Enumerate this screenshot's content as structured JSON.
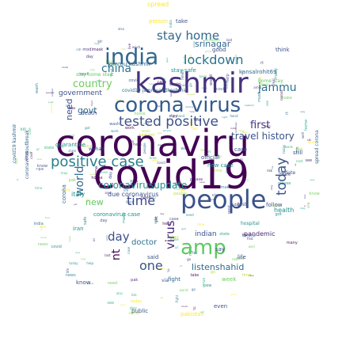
{
  "words": [
    {
      "text": "coronaviru",
      "color": "#440154"
    },
    {
      "text": "covid19",
      "color": "#440154"
    },
    {
      "text": "kashmir",
      "color": "#46327e"
    },
    {
      "text": "corona virus",
      "color": "#365c8d"
    },
    {
      "text": "people",
      "color": "#3b528b"
    },
    {
      "text": "india",
      "color": "#31688e"
    },
    {
      "text": "amp",
      "color": "#5ec962"
    },
    {
      "text": "positive case",
      "color": "#277f8e"
    },
    {
      "text": "tested positive",
      "color": "#3b528b"
    },
    {
      "text": "lockdown",
      "color": "#2c728e"
    },
    {
      "text": "stay home",
      "color": "#31688e"
    },
    {
      "text": "today",
      "color": "#3b528b"
    },
    {
      "text": "china",
      "color": "#2c728e"
    },
    {
      "text": "time",
      "color": "#3e4989"
    },
    {
      "text": "coronavirusupdate",
      "color": "#21918c"
    },
    {
      "text": "travel history",
      "color": "#3b528b"
    },
    {
      "text": "country",
      "color": "#6ccd5a"
    },
    {
      "text": "world",
      "color": "#31688e"
    },
    {
      "text": "virus",
      "color": "#482878"
    },
    {
      "text": "one",
      "color": "#3b528b"
    },
    {
      "text": "day",
      "color": "#3b528b"
    },
    {
      "text": "first",
      "color": "#46327e"
    },
    {
      "text": "jammu",
      "color": "#2c728e"
    },
    {
      "text": "srinagar",
      "color": "#31688e"
    },
    {
      "text": "new",
      "color": "#5ec962"
    },
    {
      "text": "govt",
      "color": "#31688e"
    },
    {
      "text": "need",
      "color": "#3b528b"
    },
    {
      "text": "nt",
      "color": "#440154"
    },
    {
      "text": "listenshahid",
      "color": "#31688e"
    },
    {
      "text": "doctor",
      "color": "#2c728e"
    },
    {
      "text": "indian",
      "color": "#3b528b"
    },
    {
      "text": "government",
      "color": "#3b528b"
    },
    {
      "text": "pandemic",
      "color": "#482878"
    },
    {
      "text": "health",
      "color": "#21918c"
    },
    {
      "text": "italy",
      "color": "#21918c"
    },
    {
      "text": "due coronavirus",
      "color": "#3b528b"
    },
    {
      "text": "coronavirus case",
      "color": "#21918c"
    },
    {
      "text": "new case",
      "color": "#21918c"
    },
    {
      "text": "stay safe",
      "color": "#21918c"
    },
    {
      "text": "jammu kashmir",
      "color": "#31688e"
    },
    {
      "text": "kansalrohit69",
      "color": "#31688e"
    },
    {
      "text": "home stay",
      "color": "#5ec962"
    },
    {
      "text": "spread",
      "color": "#fde725"
    },
    {
      "text": "spread corona",
      "color": "#31688e"
    },
    {
      "text": "covid19 kashmir",
      "color": "#31688e"
    },
    {
      "text": "coronavirusoutbreak",
      "color": "#31688e"
    },
    {
      "text": "pakistan",
      "color": "#fde725"
    },
    {
      "text": "covid19 jammuandkashmir",
      "color": "#2c728e"
    },
    {
      "text": "stay home stay",
      "color": "#5ec962"
    },
    {
      "text": "person",
      "color": "#fde725"
    },
    {
      "text": "take",
      "color": "#3b528b"
    },
    {
      "text": "death",
      "color": "#3b528b"
    },
    {
      "text": "quarantine",
      "color": "#21918c"
    },
    {
      "text": "case",
      "color": "#3b528b"
    },
    {
      "text": "even",
      "color": "#3b528b"
    },
    {
      "text": "public",
      "color": "#3b528b"
    },
    {
      "text": "fight",
      "color": "#31688e"
    },
    {
      "text": "know",
      "color": "#3b528b"
    },
    {
      "text": "life",
      "color": "#3b528b"
    },
    {
      "text": "say",
      "color": "#3b528b"
    },
    {
      "text": "said",
      "color": "#3b528b"
    },
    {
      "text": "think",
      "color": "#3b528b"
    },
    {
      "text": "official",
      "color": "#3b528b"
    },
    {
      "text": "still",
      "color": "#3b528b"
    },
    {
      "text": "iran",
      "color": "#21918c"
    },
    {
      "text": "follow",
      "color": "#3b528b"
    },
    {
      "text": "good",
      "color": "#3b528b"
    },
    {
      "text": "corona",
      "color": "#31688e"
    },
    {
      "text": "update",
      "color": "#3b528b"
    },
    {
      "text": "test",
      "color": "#3b528b"
    },
    {
      "text": "week",
      "color": "#6ccd5a"
    },
    {
      "text": "via",
      "color": "#3b528b"
    },
    {
      "text": "hospital",
      "color": "#21918c"
    },
    {
      "text": "wuhan",
      "color": "#3b528b"
    }
  ],
  "filler_words": [
    "virus",
    "home",
    "case",
    "stay",
    "corona",
    "news",
    "help",
    "test",
    "india",
    "kashmir",
    "covid",
    "safe",
    "help",
    "day",
    "care",
    "god",
    "rt",
    "time",
    "world",
    "please",
    "lockdown",
    "ji",
    "fight",
    "need",
    "people",
    "state",
    "modi",
    "go",
    "work",
    "kill",
    "go",
    "real",
    "hand",
    "wash",
    "mask",
    "us",
    "let",
    "ur",
    "yet",
    "may",
    "got",
    "see",
    "right",
    "way",
    "amid",
    "next",
    "also",
    "many",
    "today",
    "sir",
    "spread",
    "life",
    "take",
    "last",
    "must",
    "back",
    "keep",
    "well",
    "via",
    "new",
    "week",
    "know",
    "make",
    "come",
    "risk",
    "case",
    "first",
    "j&k",
    "pm",
    "cm",
    "pak",
    "one",
    "two",
    "day",
    "post",
    "live"
  ],
  "filler_colors": [
    "#440154",
    "#482878",
    "#3e4989",
    "#31688e",
    "#26828e",
    "#1f9e89",
    "#35b779",
    "#6ece58",
    "#b5de2b",
    "#fde725"
  ]
}
